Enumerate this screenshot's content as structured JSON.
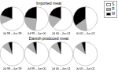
{
  "chart_data": [
    {
      "type": "pie",
      "title": "Imported meat",
      "categories": [
        "S",
        "R",
        "M"
      ],
      "colors": [
        "#ffffff",
        "#b0b0b0",
        "#000000"
      ],
      "legend": "upper right",
      "series": [
        {
          "name": "Jul 98 – Jun 99",
          "values": [
            0.68,
            0.12,
            0.2
          ]
        },
        {
          "name": "Jul 99 – Jun 00",
          "values": [
            0.52,
            0.25,
            0.23
          ]
        },
        {
          "name": "Jul 00 – Jun 01",
          "values": [
            0.62,
            0.18,
            0.2
          ]
        },
        {
          "name": "Jul 01 – Jun 02",
          "values": [
            0.48,
            0.17,
            0.35
          ]
        }
      ]
    },
    {
      "type": "pie",
      "title": "Danish produced meat",
      "categories": [
        "S",
        "R",
        "M"
      ],
      "colors": [
        "#ffffff",
        "#b0b0b0",
        "#000000"
      ],
      "series": [
        {
          "name": "Jul 98 – Jun 99",
          "values": [
            0.85,
            0.1,
            0.05
          ]
        },
        {
          "name": "Jul 99 – Jun 00",
          "values": [
            0.85,
            0.1,
            0.05
          ]
        },
        {
          "name": "Jul 00 – Jun 01",
          "values": [
            0.85,
            0.1,
            0.05
          ]
        },
        {
          "name": "Jul 01 – Jun 02",
          "values": [
            0.85,
            0.1,
            0.05
          ]
        }
      ]
    }
  ]
}
